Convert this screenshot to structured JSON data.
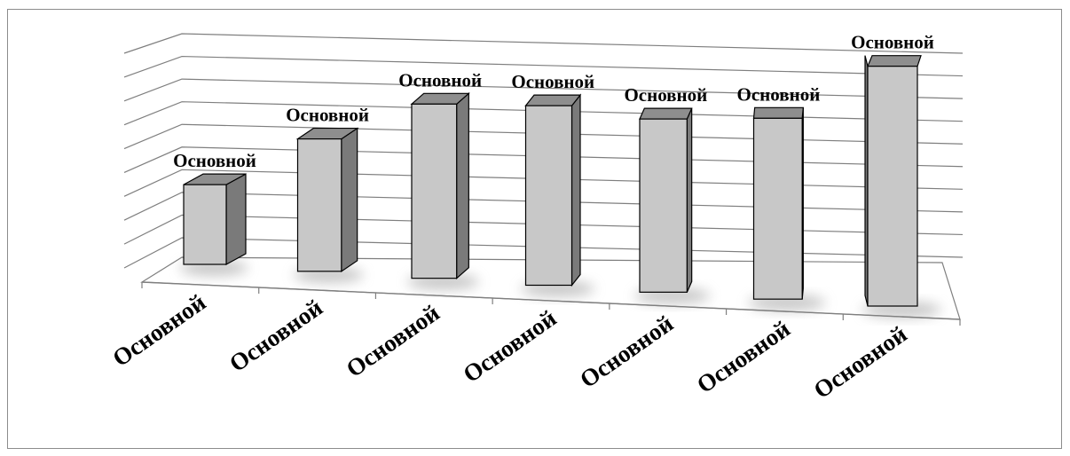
{
  "chart_data": {
    "type": "bar",
    "variant": "3d-column",
    "categories": [
      "Основной",
      "Основной",
      "Основной",
      "Основной",
      "Основной",
      "Основной",
      "Основной"
    ],
    "series": [
      {
        "values": [
          1.3,
          2.2,
          2.95,
          3.1,
          3.05,
          3.25,
          4.4
        ]
      }
    ],
    "data_labels": [
      "Основной",
      "Основной",
      "Основной",
      "Основной",
      "Основной",
      "Основной",
      "Основной"
    ],
    "ylim": [
      0,
      4.5
    ],
    "grid": true,
    "legend": "none",
    "colors": {
      "bar_front": "#c8c8c8",
      "bar_side": "#7a7a7a",
      "bar_top": "#8e8e8e",
      "outline": "#000000",
      "gridline": "#7f7f7f",
      "floor": "#ffffff",
      "shadow": "#9a9a9a"
    }
  }
}
